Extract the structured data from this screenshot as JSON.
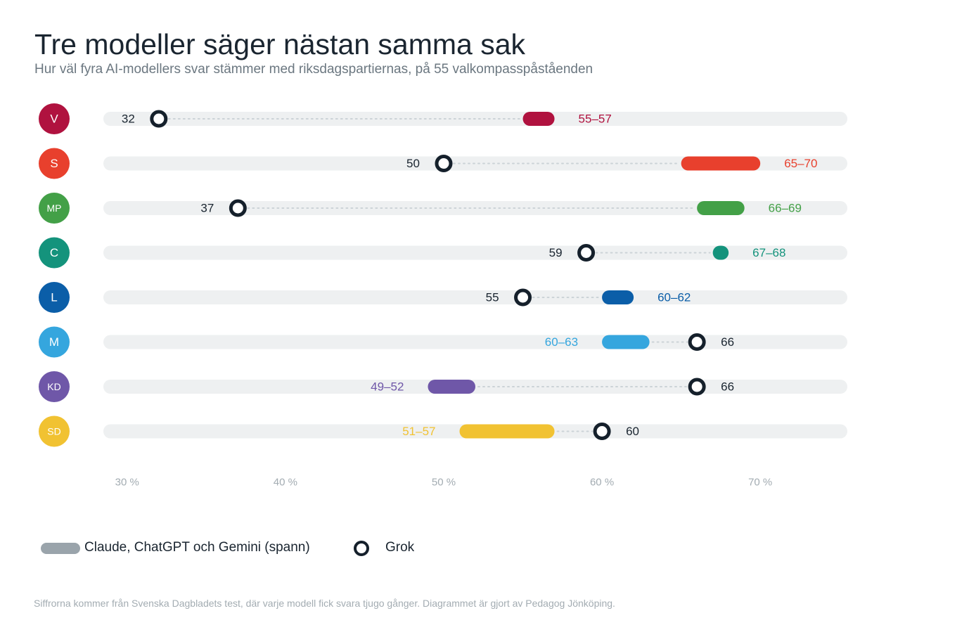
{
  "title": "Tre modeller säger nästan samma sak",
  "subtitle": "Hur väl fyra AI-modellers svar stämmer med riksdagspartiernas, på 55 valkompasspåståenden",
  "legend": {
    "models_label": "Claude, ChatGPT och Gemini (spann)",
    "grok_label": "Grok"
  },
  "source": "Siffrorna kommer från Svenska Dagbladets test, där varje modell fick svara tjugo gånger. Diagrammet är gjort av Pedagog Jönköping.",
  "colors": {
    "track": "#eef0f1",
    "dots": "#ccd3d7",
    "ring": "#15202b",
    "text": "#1a2530",
    "axis": "#a3acb2",
    "legend_swatch": "#9aa4ab"
  },
  "chart_data": {
    "type": "dumbbell",
    "xlim": [
      28.5,
      75.5
    ],
    "x_ticks": [
      30,
      40,
      50,
      60,
      70
    ],
    "x_tick_labels": [
      "30 %",
      "40 %",
      "50 %",
      "60 %",
      "70 %"
    ],
    "rows": [
      {
        "party": "V",
        "color": "#b0123f",
        "range": [
          55,
          57
        ],
        "range_label": "55–57",
        "grok": 32,
        "grok_label": "32"
      },
      {
        "party": "S",
        "color": "#e8402d",
        "range": [
          65,
          70
        ],
        "range_label": "65–70",
        "grok": 50,
        "grok_label": "50"
      },
      {
        "party": "MP",
        "color": "#43a047",
        "range": [
          66,
          69
        ],
        "range_label": "66–69",
        "grok": 37,
        "grok_label": "37"
      },
      {
        "party": "C",
        "color": "#14937c",
        "range": [
          67,
          68
        ],
        "range_label": "67–68",
        "grok": 59,
        "grok_label": "59"
      },
      {
        "party": "L",
        "color": "#0b5ea8",
        "range": [
          60,
          62
        ],
        "range_label": "60–62",
        "grok": 55,
        "grok_label": "55"
      },
      {
        "party": "M",
        "color": "#35a6de",
        "range": [
          60,
          63
        ],
        "range_label": "60–63",
        "grok": 66,
        "grok_label": "66"
      },
      {
        "party": "KD",
        "color": "#6f57a8",
        "range": [
          49,
          52
        ],
        "range_label": "49–52",
        "grok": 66,
        "grok_label": "66"
      },
      {
        "party": "SD",
        "color": "#f1c232",
        "range": [
          51,
          57
        ],
        "range_label": "51–57",
        "grok": 60,
        "grok_label": "60"
      }
    ]
  }
}
